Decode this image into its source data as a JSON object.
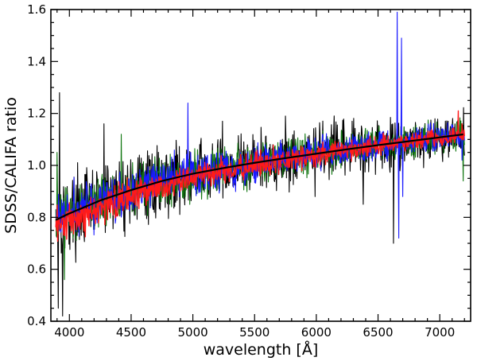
{
  "chart_data": {
    "type": "line",
    "title": "",
    "xlabel": "wavelength [Å]",
    "ylabel": "SDSS/CALIFA ratio",
    "xlim": [
      3850,
      7250
    ],
    "ylim": [
      0.4,
      1.6
    ],
    "x_ticks": [
      4000,
      4500,
      5000,
      5500,
      6000,
      6500,
      7000
    ],
    "y_ticks": [
      0.4,
      0.6,
      0.8,
      1.0,
      1.2,
      1.4,
      1.6
    ],
    "x_tick_labels": [
      "4000",
      "4500",
      "5000",
      "5500",
      "6000",
      "6500",
      "7000"
    ],
    "y_tick_labels": [
      "0.4",
      "0.6",
      "0.8",
      "1.0",
      "1.2",
      "1.4",
      "1.6"
    ],
    "grid": false,
    "series": [
      {
        "name": "black",
        "color": "#000000",
        "x_range": [
          3890,
          7200
        ],
        "spread_blue": 0.11,
        "spread_red": 0.06,
        "spikes": [
          [
            3910,
            0.45
          ],
          [
            3920,
            1.28
          ],
          [
            3945,
            0.42
          ],
          [
            4280,
            1.16
          ],
          [
            4680,
            0.83
          ],
          [
            5240,
            1.17
          ],
          [
            5750,
            1.19
          ],
          [
            5990,
            0.88
          ],
          [
            6290,
            1.17
          ],
          [
            6380,
            0.85
          ],
          [
            6625,
            0.7
          ]
        ]
      },
      {
        "name": "green",
        "color": "#117711",
        "x_range": [
          3890,
          7200
        ],
        "spread_blue": 0.08,
        "spread_red": 0.04,
        "spikes": [
          [
            3900,
            1.05
          ],
          [
            3960,
            0.56
          ],
          [
            4420,
            1.12
          ],
          [
            6480,
            1.13
          ],
          [
            7190,
            0.94
          ]
        ]
      },
      {
        "name": "blue",
        "color": "#1a1aff",
        "x_range": [
          3890,
          7200
        ],
        "spread_blue": 0.07,
        "spread_red": 0.035,
        "spikes": [
          [
            4960,
            1.24
          ],
          [
            6655,
            1.59
          ],
          [
            6668,
            0.72
          ],
          [
            6690,
            1.49
          ],
          [
            6700,
            0.88
          ],
          [
            7180,
            1.02
          ]
        ]
      },
      {
        "name": "red",
        "color": "#ff1a1a",
        "x_range": [
          3890,
          7200
        ],
        "spread_blue": 0.05,
        "spread_red": 0.02,
        "spikes": [
          [
            7150,
            1.21
          ],
          [
            7180,
            1.16
          ]
        ]
      }
    ],
    "fit": {
      "name": "fit",
      "color": "#000000",
      "x": [
        3890,
        4000,
        4250,
        4500,
        4750,
        5000,
        5250,
        5500,
        5750,
        6000,
        6250,
        6500,
        6750,
        7000,
        7200
      ],
      "y": [
        0.79,
        0.815,
        0.865,
        0.905,
        0.94,
        0.968,
        0.99,
        1.01,
        1.028,
        1.045,
        1.062,
        1.078,
        1.093,
        1.108,
        1.12
      ]
    }
  }
}
